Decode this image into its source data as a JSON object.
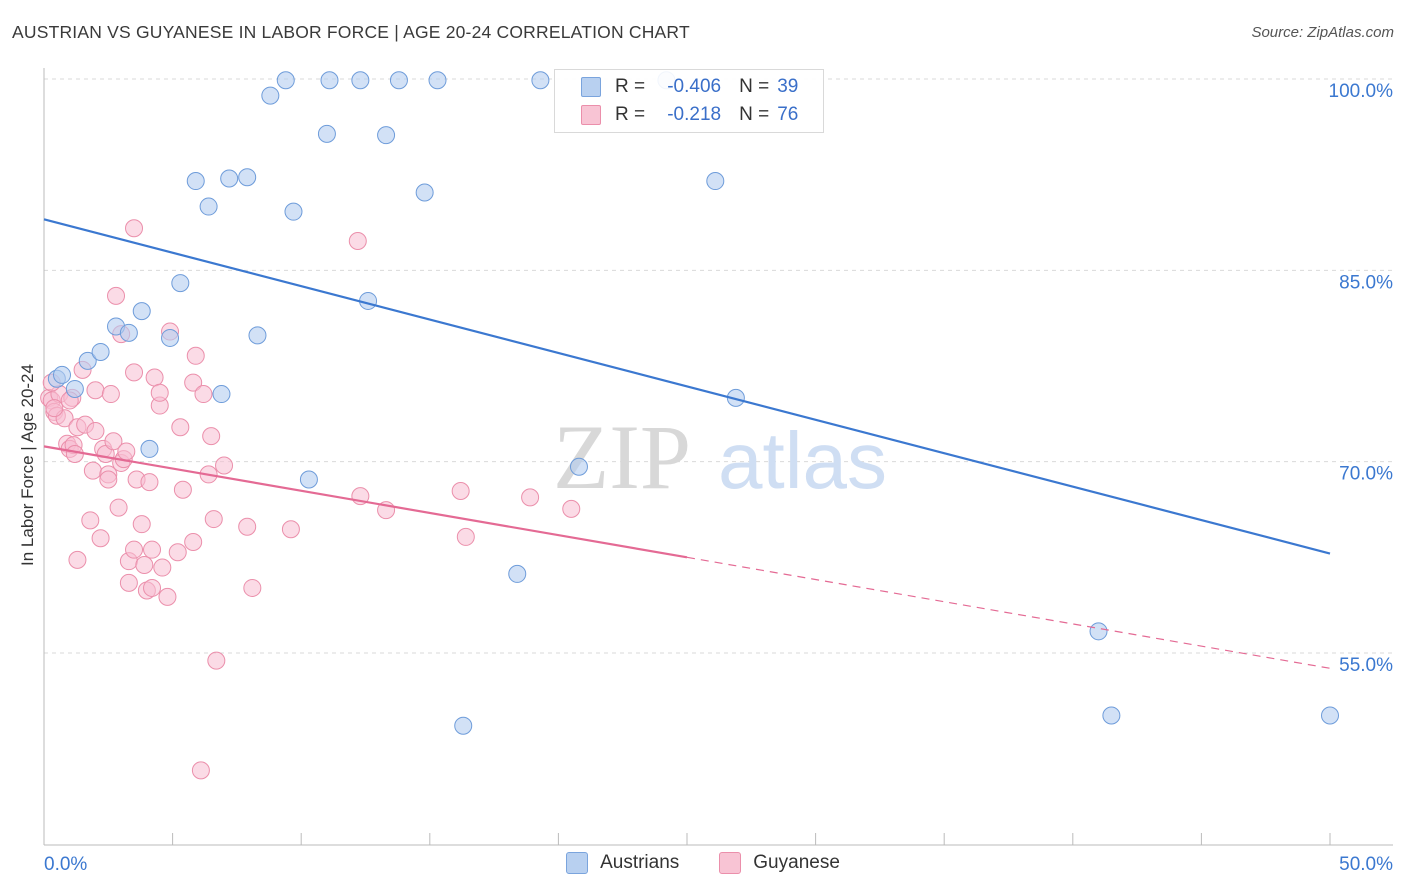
{
  "title": "AUSTRIAN VS GUYANESE IN LABOR FORCE | AGE 20-24 CORRELATION CHART",
  "source": "Source: ZipAtlas.com",
  "watermark": {
    "zip": "ZIP",
    "atlas": "atlas"
  },
  "legend": {
    "rows": [
      {
        "r_label": "R =",
        "r_value": "-0.406",
        "n_label": "N =",
        "n_value": "39",
        "color": "#b8d0f0",
        "border": "#7aa4dd"
      },
      {
        "r_label": "R =",
        "r_value": "-0.218",
        "n_label": "N =",
        "n_value": "76",
        "color": "#f8c4d4",
        "border": "#eb8fab"
      }
    ]
  },
  "bottom_legend": {
    "series_a": "Austrians",
    "series_b": "Guyanese"
  },
  "x_ticks": {
    "left": "0.0%",
    "right": "50.0%"
  },
  "y_ticks": [
    "100.0%",
    "85.0%",
    "70.0%",
    "55.0%"
  ],
  "ylabel": "In Labor Force | Age 20-24",
  "colors": {
    "austrians": "#3b78d0",
    "guyanese": "#e46a94",
    "grid": "#d9d9d9",
    "tick_text": "#3b78d0"
  },
  "chart_data": {
    "type": "scatter",
    "title": "AUSTRIAN VS GUYANESE IN LABOR FORCE | AGE 20-24 CORRELATION CHART",
    "xlabel": "",
    "ylabel": "In Labor Force | Age 20-24",
    "xlim": [
      0,
      50
    ],
    "ylim": [
      42.5,
      100
    ],
    "y_ticks": [
      55,
      70,
      85,
      100
    ],
    "grid": true,
    "legend_placement": "top-center",
    "series": [
      {
        "name": "Austrians",
        "color": "#3b78d0",
        "trend": {
          "x": [
            0,
            50
          ],
          "y": [
            89.0,
            62.8
          ]
        },
        "points": [
          [
            0.5,
            76.5
          ],
          [
            0.7,
            76.8
          ],
          [
            1.2,
            75.7
          ],
          [
            1.7,
            77.9
          ],
          [
            2.2,
            78.6
          ],
          [
            2.8,
            80.6
          ],
          [
            3.3,
            80.1
          ],
          [
            3.8,
            81.8
          ],
          [
            4.1,
            71.0
          ],
          [
            4.9,
            79.7
          ],
          [
            5.3,
            84.0
          ],
          [
            5.9,
            92.0
          ],
          [
            6.4,
            90.0
          ],
          [
            6.9,
            75.3
          ],
          [
            7.2,
            92.2
          ],
          [
            7.9,
            92.3
          ],
          [
            8.3,
            79.9
          ],
          [
            8.8,
            98.7
          ],
          [
            9.4,
            99.9
          ],
          [
            9.7,
            89.6
          ],
          [
            10.3,
            68.6
          ],
          [
            11.0,
            95.7
          ],
          [
            11.1,
            99.9
          ],
          [
            12.3,
            99.9
          ],
          [
            12.6,
            82.6
          ],
          [
            13.3,
            95.6
          ],
          [
            13.8,
            99.9
          ],
          [
            14.8,
            91.1
          ],
          [
            15.3,
            99.9
          ],
          [
            16.3,
            49.3
          ],
          [
            18.4,
            61.2
          ],
          [
            19.3,
            99.9
          ],
          [
            20.8,
            69.6
          ],
          [
            24.2,
            99.9
          ],
          [
            26.1,
            92.0
          ],
          [
            26.9,
            75.0
          ],
          [
            41.0,
            56.7
          ],
          [
            41.5,
            50.1
          ],
          [
            50.0,
            50.1
          ]
        ]
      },
      {
        "name": "Guyanese",
        "color": "#e46a94",
        "trend": {
          "x": [
            0,
            25
          ],
          "y": [
            71.2,
            62.5
          ]
        },
        "trend_dashed": {
          "x": [
            25,
            50
          ],
          "y": [
            62.5,
            53.8
          ]
        },
        "points": [
          [
            0.2,
            75.0
          ],
          [
            0.3,
            74.8
          ],
          [
            0.4,
            73.9
          ],
          [
            0.5,
            73.6
          ],
          [
            0.6,
            75.3
          ],
          [
            0.8,
            73.4
          ],
          [
            0.9,
            71.4
          ],
          [
            1.0,
            71.0
          ],
          [
            1.1,
            75.0
          ],
          [
            1.15,
            71.3
          ],
          [
            1.2,
            70.6
          ],
          [
            1.3,
            72.7
          ],
          [
            1.3,
            62.3
          ],
          [
            1.5,
            77.2
          ],
          [
            1.6,
            72.9
          ],
          [
            1.8,
            65.4
          ],
          [
            1.9,
            69.3
          ],
          [
            2.0,
            75.6
          ],
          [
            2.0,
            72.4
          ],
          [
            2.2,
            64.0
          ],
          [
            2.3,
            71.0
          ],
          [
            2.4,
            70.6
          ],
          [
            2.5,
            69.0
          ],
          [
            2.5,
            68.6
          ],
          [
            2.6,
            75.3
          ],
          [
            2.7,
            71.6
          ],
          [
            2.8,
            83.0
          ],
          [
            2.9,
            66.4
          ],
          [
            3.0,
            69.9
          ],
          [
            3.0,
            80.0
          ],
          [
            3.1,
            70.2
          ],
          [
            3.2,
            70.8
          ],
          [
            3.3,
            62.2
          ],
          [
            3.3,
            60.5
          ],
          [
            3.5,
            63.1
          ],
          [
            3.5,
            88.3
          ],
          [
            3.5,
            77.0
          ],
          [
            3.6,
            68.6
          ],
          [
            3.8,
            65.1
          ],
          [
            3.9,
            61.9
          ],
          [
            4.0,
            59.9
          ],
          [
            4.1,
            68.4
          ],
          [
            4.2,
            63.1
          ],
          [
            4.2,
            60.1
          ],
          [
            4.3,
            76.6
          ],
          [
            4.5,
            74.4
          ],
          [
            4.5,
            75.4
          ],
          [
            4.6,
            61.7
          ],
          [
            4.8,
            59.4
          ],
          [
            4.9,
            80.2
          ],
          [
            5.2,
            62.9
          ],
          [
            5.3,
            72.7
          ],
          [
            5.4,
            67.8
          ],
          [
            5.8,
            63.7
          ],
          [
            5.8,
            76.2
          ],
          [
            5.9,
            78.3
          ],
          [
            6.1,
            45.8
          ],
          [
            6.2,
            75.3
          ],
          [
            6.4,
            69.0
          ],
          [
            6.5,
            72.0
          ],
          [
            6.6,
            65.5
          ],
          [
            6.7,
            54.4
          ],
          [
            7.0,
            69.7
          ],
          [
            7.9,
            64.9
          ],
          [
            8.1,
            60.1
          ],
          [
            9.6,
            64.7
          ],
          [
            12.2,
            87.3
          ],
          [
            12.3,
            67.3
          ],
          [
            13.3,
            66.2
          ],
          [
            16.2,
            67.7
          ],
          [
            16.4,
            64.1
          ],
          [
            18.9,
            67.2
          ],
          [
            20.5,
            66.3
          ],
          [
            0.3,
            76.2
          ],
          [
            0.4,
            74.2
          ],
          [
            1.0,
            74.8
          ]
        ]
      }
    ]
  }
}
